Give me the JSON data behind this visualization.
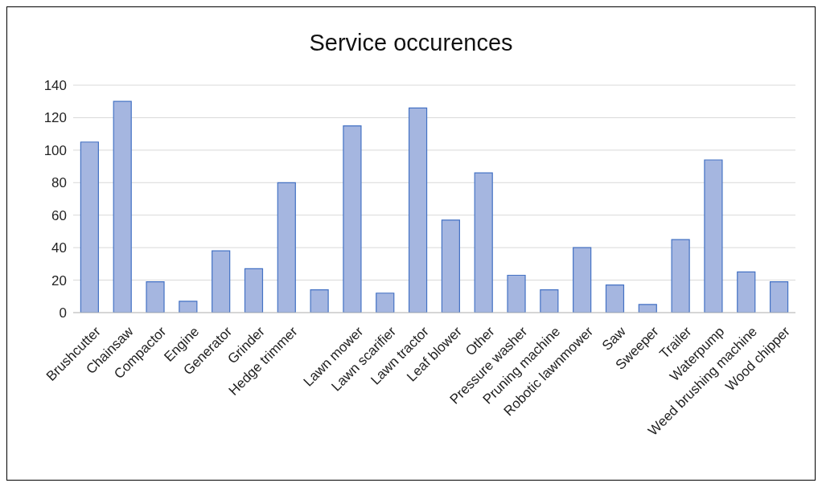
{
  "chart_data": {
    "type": "bar",
    "title": "Service occurences",
    "categories": [
      "Brushcutter",
      "Chainsaw",
      "Compactor",
      "Engine",
      "Generator",
      "Grinder",
      "Hedge trimmer",
      null,
      "Lawn mower",
      "Lawn scarifier",
      "Lawn tractor",
      "Leaf blower",
      "Other",
      "Pressure washer",
      "Pruning machine",
      "Robotic lawnmower",
      "Saw",
      "Sweeper",
      "Trailer",
      "Waterpump",
      "Weed brushing machine",
      "Wood chipper"
    ],
    "values": [
      105,
      130,
      19,
      7,
      38,
      27,
      80,
      14,
      115,
      12,
      126,
      57,
      86,
      23,
      14,
      40,
      17,
      5,
      45,
      94,
      25,
      19
    ],
    "color": "#a5b6e0",
    "ylim": [
      0,
      140
    ],
    "yticks": [
      0,
      20,
      40,
      60,
      80,
      100,
      120,
      140
    ],
    "grid": "y",
    "legend": false
  }
}
